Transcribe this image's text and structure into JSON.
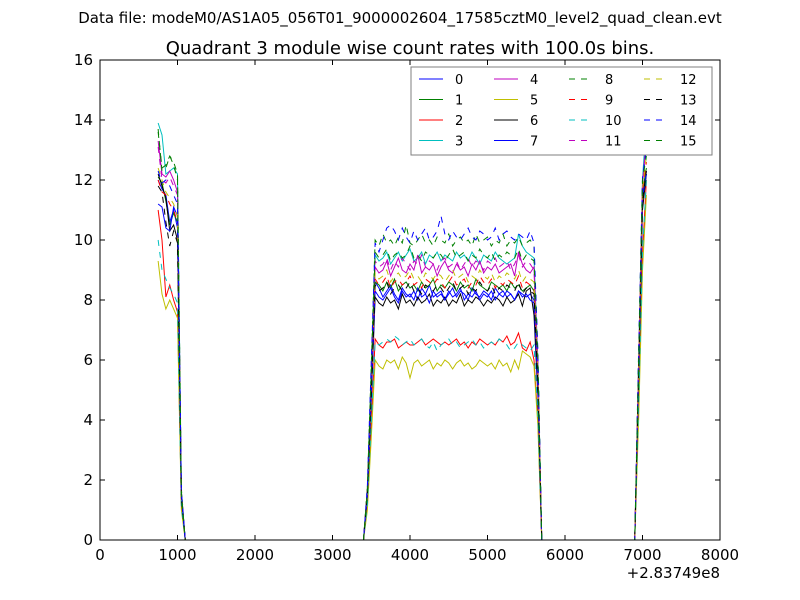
{
  "chart_data": {
    "type": "line",
    "suptitle": "Data file: modeM0/AS1A05_056T01_9000002604_17585cztM0_level2_quad_clean.evt",
    "title": "Quadrant 3 module wise count rates with 100.0s bins.",
    "xlabel": "",
    "ylabel": "",
    "xlim": [
      0,
      8000
    ],
    "ylim": [
      0,
      16
    ],
    "x_offset_label": "+2.83749e8",
    "xticks": [
      0,
      1000,
      2000,
      3000,
      4000,
      5000,
      6000,
      7000,
      8000
    ],
    "yticks": [
      0,
      2,
      4,
      6,
      8,
      10,
      12,
      14,
      16
    ],
    "grid": false,
    "legend": {
      "placement": "top-right",
      "columns": 4
    },
    "segments": [
      {
        "x_start": 750,
        "x_step": 50,
        "count": 9
      },
      {
        "x_start": 3350,
        "x_step": 50,
        "count": 49
      },
      {
        "x_start": 6850,
        "x_step": 50,
        "count": 5
      }
    ],
    "series": [
      {
        "name": "0",
        "color": "#0000ff",
        "dash": "solid",
        "plateau": 8.2,
        "seg1": [
          12.0,
          11.7,
          11.5,
          10.6,
          11.0,
          10.4,
          1.5,
          0,
          0
        ],
        "seg2": [
          0,
          0,
          1.5,
          4.8,
          8.6,
          8.4,
          8.1,
          8.3,
          8.5,
          8.2,
          8.0,
          8.4,
          8.2,
          8.1,
          8.3,
          8.0,
          8.4,
          8.2,
          8.5,
          8.1,
          8.2,
          8.3,
          8.0,
          8.2,
          8.4,
          8.1,
          8.3,
          8.2,
          8.0,
          8.4,
          8.2,
          8.1,
          8.3,
          8.2,
          8.0,
          8.4,
          8.2,
          8.3,
          8.1,
          8.2,
          8.0,
          8.3,
          8.2,
          8.1,
          8.2,
          8.0,
          5.0,
          0,
          0
        ],
        "seg3": [
          0,
          0,
          5.5,
          11.5,
          12.3
        ]
      },
      {
        "name": "1",
        "color": "#008000",
        "dash": "solid",
        "plateau": 8.5,
        "seg1": [
          12.1,
          11.9,
          11.3,
          10.5,
          10.9,
          10.6,
          1.4,
          0,
          0
        ],
        "seg2": [
          0,
          0,
          1.6,
          4.9,
          8.6,
          8.5,
          8.3,
          8.6,
          8.4,
          8.7,
          8.3,
          8.5,
          8.6,
          8.4,
          8.5,
          8.3,
          8.6,
          8.4,
          8.5,
          8.7,
          8.3,
          8.5,
          8.4,
          8.6,
          8.5,
          8.3,
          8.6,
          8.4,
          8.5,
          8.3,
          8.7,
          8.5,
          8.4,
          8.3,
          8.6,
          8.5,
          8.4,
          8.5,
          8.3,
          8.6,
          8.4,
          8.5,
          8.3,
          8.4,
          8.5,
          8.3,
          5.1,
          0,
          0
        ],
        "seg3": [
          0,
          0,
          5.6,
          11.6,
          12.4
        ]
      },
      {
        "name": "2",
        "color": "#ff0000",
        "dash": "solid",
        "plateau": 6.6,
        "seg1": [
          11.0,
          10.0,
          8.1,
          8.5,
          8.0,
          7.6,
          1.2,
          0,
          0
        ],
        "seg2": [
          0,
          0,
          1.2,
          3.8,
          6.7,
          6.5,
          6.4,
          6.6,
          6.6,
          6.7,
          6.4,
          6.5,
          6.6,
          6.5,
          6.5,
          6.6,
          6.7,
          6.5,
          6.6,
          6.7,
          6.6,
          6.5,
          6.6,
          6.5,
          6.6,
          6.7,
          6.5,
          6.6,
          6.4,
          6.6,
          6.5,
          6.7,
          6.6,
          6.5,
          6.6,
          6.5,
          6.7,
          6.6,
          6.8,
          6.5,
          6.6,
          6.9,
          6.4,
          6.3,
          6.6,
          6.0,
          4.0,
          0,
          0
        ],
        "seg3": [
          0,
          0,
          4.5,
          9.5,
          12.0
        ]
      },
      {
        "name": "3",
        "color": "#00bfbf",
        "dash": "solid",
        "plateau": 9.4,
        "seg1": [
          13.9,
          13.5,
          12.2,
          12.3,
          12.4,
          12.2,
          1.6,
          0,
          0
        ],
        "seg2": [
          0,
          0,
          1.7,
          5.4,
          9.5,
          9.3,
          9.4,
          9.6,
          9.2,
          9.4,
          9.6,
          9.3,
          9.5,
          9.7,
          9.3,
          9.4,
          9.6,
          9.2,
          9.5,
          9.4,
          9.6,
          9.3,
          9.5,
          9.4,
          9.3,
          9.6,
          9.4,
          9.5,
          9.3,
          9.6,
          9.4,
          9.2,
          9.5,
          9.4,
          9.3,
          9.6,
          9.4,
          9.3,
          9.2,
          9.3,
          9.4,
          10.2,
          9.8,
          9.6,
          9.5,
          9.4,
          6.0,
          0,
          0
        ],
        "seg3": [
          0,
          0,
          6.0,
          12.0,
          14.0
        ]
      },
      {
        "name": "4",
        "color": "#bf00bf",
        "dash": "solid",
        "plateau": 9.0,
        "seg1": [
          13.3,
          12.2,
          12.1,
          12.3,
          12.0,
          11.6,
          1.6,
          0,
          0
        ],
        "seg2": [
          0,
          0,
          1.6,
          5.2,
          9.1,
          8.9,
          9.0,
          9.3,
          8.8,
          9.1,
          9.4,
          9.0,
          8.9,
          9.2,
          9.0,
          9.5,
          8.9,
          9.1,
          9.0,
          9.2,
          8.8,
          9.1,
          9.3,
          9.0,
          8.9,
          9.2,
          9.0,
          9.1,
          8.8,
          9.2,
          9.0,
          9.3,
          8.9,
          9.1,
          9.0,
          9.2,
          8.9,
          9.0,
          9.1,
          9.2,
          8.8,
          9.6,
          9.2,
          9.0,
          8.9,
          9.1,
          5.8,
          0,
          0
        ],
        "seg3": [
          0,
          0,
          5.8,
          11.8,
          13.5
        ]
      },
      {
        "name": "5",
        "color": "#bfbf00",
        "dash": "solid",
        "plateau": 5.9,
        "seg1": [
          9.3,
          8.2,
          7.7,
          8.0,
          7.7,
          7.4,
          1.0,
          0,
          0
        ],
        "seg2": [
          0,
          0,
          1.0,
          3.4,
          6.0,
          5.8,
          5.7,
          6.0,
          5.9,
          6.0,
          5.7,
          6.1,
          5.9,
          5.4,
          5.9,
          6.0,
          5.8,
          5.9,
          6.0,
          5.7,
          5.9,
          5.8,
          6.0,
          5.9,
          5.7,
          5.9,
          6.0,
          5.8,
          5.9,
          5.7,
          5.8,
          6.0,
          5.9,
          5.8,
          5.9,
          5.7,
          6.0,
          5.8,
          5.9,
          5.6,
          6.0,
          5.7,
          6.3,
          6.2,
          6.1,
          5.8,
          3.8,
          0,
          0
        ],
        "seg3": [
          0,
          0,
          4.0,
          9.0,
          11.5
        ]
      },
      {
        "name": "6",
        "color": "#000000",
        "dash": "solid",
        "plateau": 8.0,
        "seg1": [
          12.2,
          11.8,
          11.4,
          10.3,
          10.5,
          10.0,
          1.4,
          0,
          0
        ],
        "seg2": [
          0,
          0,
          1.5,
          4.7,
          8.1,
          7.9,
          7.8,
          8.1,
          7.9,
          8.0,
          7.7,
          8.2,
          7.9,
          8.0,
          7.8,
          8.1,
          7.9,
          8.0,
          8.2,
          7.8,
          8.0,
          7.9,
          8.1,
          7.8,
          8.0,
          7.9,
          8.2,
          7.8,
          8.0,
          7.9,
          8.1,
          8.0,
          7.8,
          8.0,
          7.9,
          8.1,
          8.0,
          7.8,
          8.1,
          7.9,
          8.0,
          8.2,
          7.8,
          8.3,
          8.4,
          7.5,
          4.8,
          0,
          0
        ],
        "seg3": [
          0,
          0,
          5.3,
          11.0,
          12.2
        ]
      },
      {
        "name": "7",
        "color": "#0000ff",
        "dash": "solid",
        "plateau": 8.2,
        "seg1": [
          11.2,
          11.1,
          10.4,
          10.3,
          11.1,
          10.8,
          1.5,
          0,
          0
        ],
        "seg2": [
          0,
          0,
          1.5,
          4.8,
          8.3,
          8.1,
          8.0,
          8.2,
          8.4,
          8.1,
          7.9,
          8.3,
          8.1,
          8.2,
          8.0,
          8.4,
          8.1,
          8.2,
          7.9,
          8.3,
          8.1,
          8.2,
          8.0,
          8.3,
          8.1,
          8.2,
          8.4,
          8.0,
          8.2,
          8.1,
          8.3,
          8.0,
          8.2,
          8.1,
          8.3,
          8.0,
          8.2,
          8.1,
          8.3,
          8.2,
          8.0,
          8.3,
          8.1,
          8.2,
          8.0,
          7.9,
          5.0,
          0,
          0
        ],
        "seg3": [
          0,
          0,
          5.4,
          11.4,
          12.2
        ]
      },
      {
        "name": "8",
        "color": "#008000",
        "dash": "dashed",
        "plateau": 9.9,
        "seg1": [
          13.6,
          12.4,
          12.5,
          12.8,
          12.6,
          12.2,
          1.7,
          0,
          0
        ],
        "seg2": [
          0,
          0,
          1.8,
          5.8,
          10.0,
          9.8,
          10.2,
          9.9,
          10.0,
          9.8,
          10.1,
          9.9,
          10.5,
          9.9,
          9.8,
          10.0,
          10.2,
          9.9,
          10.0,
          9.8,
          10.1,
          10.0,
          9.9,
          10.2,
          9.8,
          10.0,
          10.1,
          9.9,
          10.0,
          9.8,
          10.2,
          9.9,
          10.0,
          10.1,
          9.8,
          10.0,
          9.9,
          10.2,
          9.8,
          10.0,
          9.9,
          10.1,
          9.8,
          9.9,
          10.0,
          9.8,
          6.2,
          0,
          0
        ],
        "seg3": [
          0,
          0,
          6.2,
          12.0,
          13.0
        ]
      },
      {
        "name": "9",
        "color": "#ff0000",
        "dash": "dashed",
        "plateau": 8.6,
        "seg1": [
          12.0,
          11.6,
          11.5,
          11.2,
          11.0,
          10.6,
          1.5,
          0,
          0
        ],
        "seg2": [
          0,
          0,
          1.6,
          5.0,
          8.7,
          8.5,
          8.6,
          8.8,
          8.4,
          8.6,
          8.7,
          8.5,
          8.6,
          8.8,
          8.5,
          8.6,
          8.4,
          8.7,
          8.6,
          8.5,
          8.7,
          8.6,
          8.4,
          8.6,
          8.8,
          8.5,
          8.6,
          8.7,
          8.4,
          8.6,
          8.5,
          8.8,
          8.6,
          8.5,
          8.7,
          8.4,
          8.6,
          8.5,
          8.7,
          8.6,
          8.5,
          8.8,
          8.4,
          8.6,
          8.5,
          8.4,
          5.4,
          0,
          0
        ],
        "seg3": [
          0,
          0,
          5.6,
          11.6,
          12.6
        ]
      },
      {
        "name": "10",
        "color": "#00bfbf",
        "dash": "dashed",
        "plateau": 6.6,
        "seg1": [
          10.0,
          9.0,
          8.7,
          8.4,
          8.2,
          7.9,
          1.1,
          0,
          0
        ],
        "seg2": [
          0,
          0,
          1.2,
          3.9,
          6.6,
          6.5,
          6.6,
          6.7,
          6.6,
          6.8,
          6.7,
          6.5,
          6.6,
          6.7,
          6.5,
          6.6,
          6.7,
          6.5,
          6.4,
          6.6,
          6.3,
          6.5,
          6.6,
          6.7,
          6.5,
          6.6,
          6.4,
          6.5,
          6.6,
          6.7,
          6.5,
          6.6,
          6.4,
          6.5,
          6.6,
          6.5,
          6.7,
          6.6,
          6.5,
          6.3,
          6.4,
          6.6,
          6.5,
          6.4,
          6.3,
          6.5,
          4.2,
          0,
          0
        ],
        "seg3": [
          0,
          0,
          4.5,
          9.6,
          12.0
        ]
      },
      {
        "name": "11",
        "color": "#bf00bf",
        "dash": "dashed",
        "plateau": 9.2,
        "seg1": [
          13.1,
          12.0,
          11.9,
          12.1,
          11.8,
          11.5,
          1.6,
          0,
          0
        ],
        "seg2": [
          0,
          0,
          1.7,
          5.3,
          9.3,
          9.1,
          9.2,
          9.4,
          9.0,
          9.3,
          9.1,
          9.4,
          9.2,
          9.0,
          9.3,
          9.2,
          9.5,
          9.1,
          9.3,
          9.2,
          9.0,
          9.3,
          9.4,
          9.1,
          9.2,
          9.3,
          9.0,
          9.2,
          9.4,
          9.1,
          9.3,
          9.2,
          9.0,
          9.3,
          9.2,
          9.4,
          9.1,
          9.2,
          9.3,
          9.0,
          9.2,
          9.5,
          9.1,
          9.3,
          9.2,
          9.0,
          5.9,
          0,
          0
        ],
        "seg3": [
          0,
          0,
          5.9,
          11.9,
          13.3
        ]
      },
      {
        "name": "12",
        "color": "#bfbf00",
        "dash": "dashed",
        "plateau": 8.8,
        "seg1": [
          12.4,
          12.0,
          11.6,
          11.4,
          11.2,
          10.8,
          1.5,
          0,
          0
        ],
        "seg2": [
          0,
          0,
          1.6,
          5.1,
          8.9,
          8.7,
          8.8,
          9.0,
          8.6,
          8.8,
          8.9,
          8.7,
          8.8,
          9.0,
          8.7,
          8.8,
          8.6,
          8.9,
          8.8,
          8.7,
          8.9,
          8.8,
          8.6,
          8.8,
          9.0,
          8.7,
          8.8,
          8.9,
          8.6,
          8.8,
          8.7,
          9.0,
          8.8,
          8.7,
          8.9,
          8.6,
          8.8,
          8.7,
          8.9,
          8.8,
          8.7,
          9.0,
          8.6,
          8.8,
          8.7,
          8.6,
          5.5,
          0,
          0
        ],
        "seg3": [
          0,
          0,
          5.7,
          11.7,
          12.8
        ]
      },
      {
        "name": "13",
        "color": "#000000",
        "dash": "dashed",
        "plateau": 8.4,
        "seg1": [
          11.8,
          11.6,
          10.6,
          9.8,
          10.3,
          9.9,
          1.4,
          0,
          0
        ],
        "seg2": [
          0,
          0,
          1.5,
          4.9,
          8.5,
          8.3,
          8.4,
          8.6,
          8.2,
          8.4,
          8.5,
          8.3,
          8.4,
          8.6,
          8.3,
          8.4,
          8.2,
          8.5,
          8.4,
          8.3,
          8.5,
          8.4,
          8.2,
          8.4,
          8.6,
          8.3,
          8.4,
          8.5,
          8.2,
          8.4,
          8.3,
          8.6,
          8.4,
          8.3,
          8.5,
          8.2,
          8.4,
          8.3,
          8.5,
          8.4,
          8.3,
          8.6,
          8.2,
          8.4,
          8.3,
          8.2,
          5.2,
          0,
          0
        ],
        "seg3": [
          0,
          0,
          5.5,
          11.3,
          12.3
        ]
      },
      {
        "name": "14",
        "color": "#0000ff",
        "dash": "dashed",
        "plateau": 10.1,
        "seg1": [
          12.3,
          11.9,
          12.0,
          11.8,
          11.5,
          11.2,
          1.6,
          0,
          0
        ],
        "seg2": [
          0,
          0,
          1.8,
          5.9,
          9.9,
          9.6,
          10.0,
          10.4,
          10.5,
          10.3,
          10.0,
          10.4,
          10.1,
          9.9,
          10.3,
          10.0,
          10.2,
          10.4,
          10.0,
          10.1,
          10.3,
          10.8,
          10.2,
          10.0,
          10.3,
          10.1,
          10.0,
          10.2,
          10.4,
          10.1,
          10.0,
          10.3,
          10.2,
          10.0,
          10.1,
          10.4,
          10.0,
          10.2,
          10.3,
          10.1,
          10.0,
          10.2,
          10.1,
          10.0,
          10.3,
          9.9,
          6.3,
          0,
          0
        ],
        "seg3": [
          0,
          0,
          6.3,
          12.1,
          13.0
        ]
      },
      {
        "name": "15",
        "color": "#008000",
        "dash": "dashed",
        "plateau": 9.5,
        "seg1": [
          13.7,
          12.3,
          12.4,
          12.8,
          12.5,
          12.0,
          1.6,
          0,
          0
        ],
        "seg2": [
          0,
          0,
          1.7,
          5.6,
          9.6,
          9.4,
          9.5,
          9.7,
          9.3,
          9.5,
          9.6,
          9.4,
          9.5,
          9.8,
          9.4,
          9.5,
          9.3,
          9.6,
          9.5,
          9.4,
          9.6,
          9.5,
          9.3,
          9.5,
          9.7,
          9.4,
          9.5,
          9.6,
          9.3,
          9.5,
          9.4,
          9.7,
          9.5,
          9.4,
          9.6,
          9.3,
          9.5,
          9.4,
          9.6,
          9.5,
          9.4,
          9.7,
          9.3,
          9.5,
          9.4,
          9.3,
          6.0,
          0,
          0
        ],
        "seg3": [
          0,
          0,
          6.0,
          12.0,
          12.8
        ]
      }
    ]
  }
}
